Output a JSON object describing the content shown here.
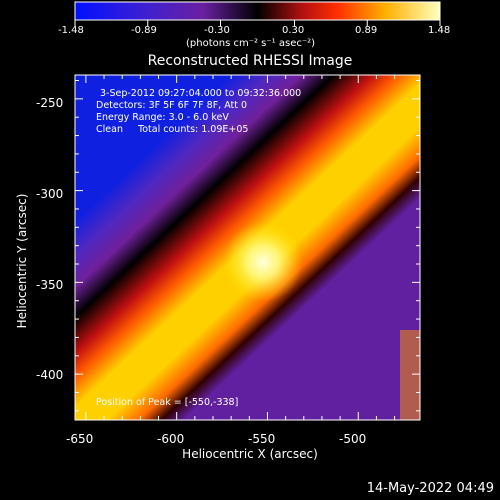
{
  "colorbar": {
    "tick_labels": [
      "-1.48",
      "-0.89",
      "-0.30",
      "0.30",
      "0.89",
      "1.48"
    ],
    "unit_label": "(photons cm⁻² s⁻¹ asec⁻²)",
    "range": [
      -1.48,
      1.48
    ]
  },
  "plot": {
    "title": "Reconstructed RHESSI Image",
    "xlabel": "Heliocentric X (arcsec)",
    "ylabel": "Heliocentric Y (arcsec)",
    "x_ticks": [
      "-650",
      "-600",
      "-550",
      "-500"
    ],
    "y_ticks": [
      "-250",
      "-300",
      "-350",
      "-400"
    ],
    "xlim": [
      -656,
      -466
    ],
    "ylim": [
      -425,
      -237
    ],
    "annotations": {
      "time": "3-Sep-2012 09:27:04.000 to 09:32:36.000",
      "detectors": "Detectors: 3F 5F 6F 7F 8F, Att 0",
      "energy": "Energy Range: 3.0 - 6.0 keV",
      "clean": "Clean     Total counts: 1.09E+05",
      "peak": "Position of Peak = [-550,-338]"
    },
    "peak": {
      "x": -550,
      "y": -338
    }
  },
  "footer": {
    "timestamp": "14-May-2022 04:49"
  },
  "colors": {
    "background": "#000000",
    "foreground": "#ffffff"
  }
}
